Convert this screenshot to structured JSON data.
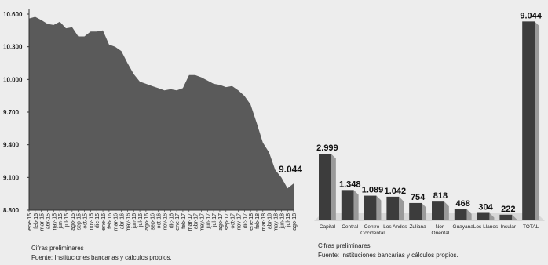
{
  "chart_data": [
    {
      "type": "area",
      "title": "",
      "xlabel": "",
      "ylabel": "",
      "ylim": [
        8800,
        10600
      ],
      "yticks": [
        8800,
        9100,
        9400,
        9700,
        10000,
        10300,
        10600
      ],
      "ytick_labels": [
        "8.800",
        "9.100",
        "9.400",
        "9.700",
        "10.000",
        "10.300",
        "10.600"
      ],
      "categories": [
        "ene-15",
        "feb-15",
        "mar-15",
        "abr-15",
        "may-15",
        "jun-15",
        "jul-15",
        "ago-15",
        "sep-15",
        "oct-15",
        "nov-15",
        "dic-15",
        "ene-16",
        "feb-16",
        "mar-16",
        "abr-16",
        "may-16",
        "jun-16",
        "jul-16",
        "ago-16",
        "sep-16",
        "oct-16",
        "nov-16",
        "dic-16",
        "ene-17",
        "feb-17",
        "mar-17",
        "abr-17",
        "may-17",
        "jun-17",
        "jul-17",
        "ago-17",
        "sep-17",
        "oct-17",
        "nov-17",
        "dic-17",
        "ene-18",
        "feb-18",
        "mar-18",
        "abr-18",
        "may-18",
        "jun-18",
        "jul-18",
        "ago-18"
      ],
      "values": [
        10560,
        10575,
        10545,
        10510,
        10500,
        10530,
        10470,
        10480,
        10395,
        10395,
        10440,
        10440,
        10450,
        10320,
        10300,
        10260,
        10150,
        10050,
        9980,
        9960,
        9940,
        9920,
        9900,
        9910,
        9900,
        9920,
        10040,
        10040,
        10020,
        9990,
        9960,
        9950,
        9930,
        9940,
        9900,
        9850,
        9770,
        9600,
        9420,
        9330,
        9170,
        9100,
        9000,
        9044
      ],
      "annotation": {
        "label": "9.044",
        "category": "ago-18"
      },
      "grid": false,
      "legend": "none",
      "fill_color": "#5a5a5a",
      "notes": [
        "Cifras preliminares",
        "Fuente: Instituciones bancarias y cálculos propios."
      ]
    },
    {
      "type": "bar",
      "title": "",
      "xlabel": "",
      "ylabel": "",
      "ylim": [
        0,
        9200
      ],
      "categories": [
        "Capital",
        "Central",
        "Centro-\nOccidental",
        "Los Andes",
        "Zuliana",
        "Nor-\nOriental",
        "Guayana",
        "Los Llanos",
        "Insular",
        "TOTAL"
      ],
      "values": [
        2999,
        1348,
        1089,
        1042,
        754,
        818,
        468,
        304,
        222,
        9044
      ],
      "value_labels": [
        "2.999",
        "1.348",
        "1.089",
        "1.042",
        "754",
        "818",
        "468",
        "304",
        "222",
        "9.044"
      ],
      "grid": false,
      "legend": "none",
      "bar_color": "#3c3c3c",
      "notes": [
        "Cifras preliminares",
        "Fuente: Instituciones bancarias y cálculos propios."
      ]
    }
  ]
}
